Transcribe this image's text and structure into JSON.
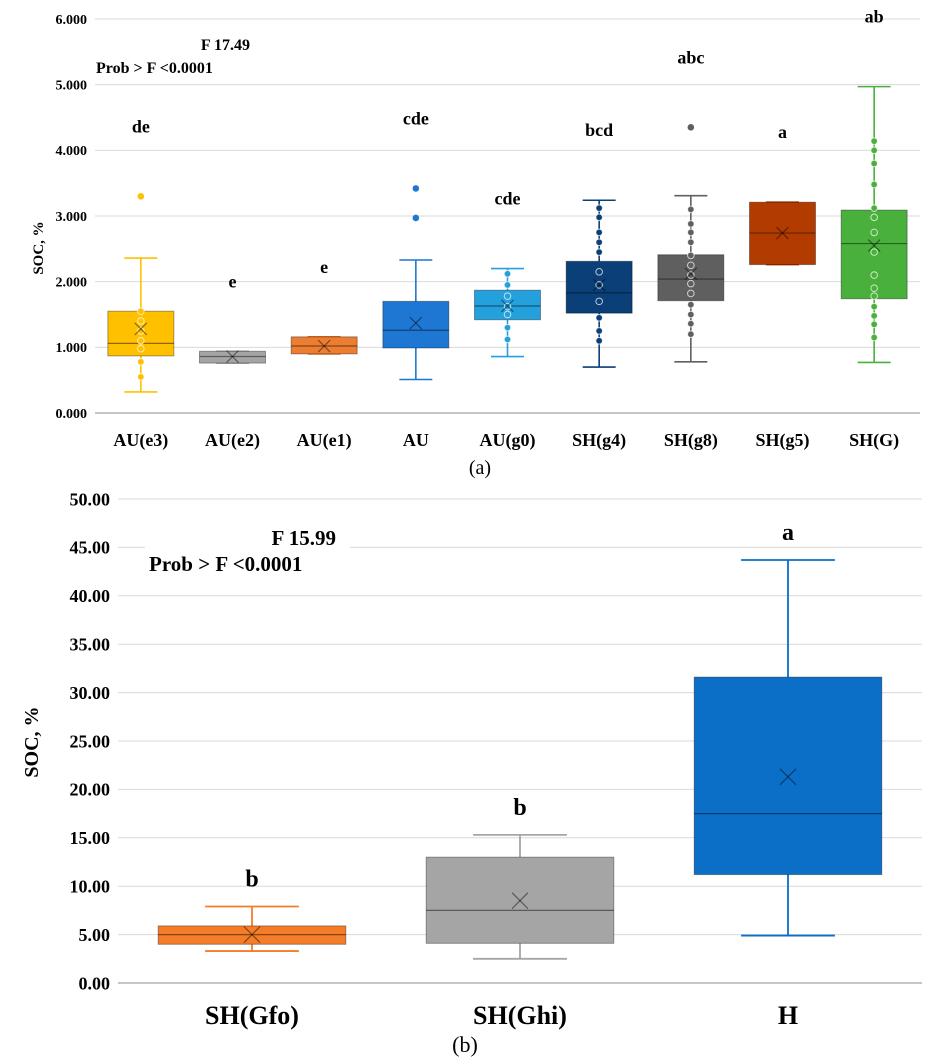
{
  "chart_data": [
    {
      "type": "box",
      "panel_label": "(a)",
      "ylabel": "SOC, %",
      "ylim": [
        0,
        6
      ],
      "yticks": [
        "0.000",
        "1.000",
        "2.000",
        "3.000",
        "4.000",
        "5.000",
        "6.000"
      ],
      "stats_text": {
        "f_line": "F   17.49",
        "p_line": "Prob > F <0.0001"
      },
      "categories": [
        "AU(e3)",
        "AU(e2)",
        "AU(e1)",
        "AU",
        "AU(g0)",
        "SH(g4)",
        "SH(g8)",
        "SH(g5)",
        "SH(G)"
      ],
      "boxes": [
        {
          "name": "AU(e3)",
          "color": "#FFC000",
          "min": 0.32,
          "q1": 0.87,
          "median": 1.06,
          "q3": 1.55,
          "max": 2.36,
          "mean": 1.28,
          "group": "de",
          "outliers": [
            3.3
          ],
          "points": [
            0.55,
            0.78,
            0.98,
            1.1,
            1.25,
            1.4,
            1.55
          ]
        },
        {
          "name": "AU(e2)",
          "color": "#A5A5A5",
          "min": 0.76,
          "q1": 0.76,
          "median": 0.86,
          "q3": 0.94,
          "max": 0.94,
          "mean": 0.86,
          "group": "e",
          "outliers": [],
          "points": []
        },
        {
          "name": "AU(e1)",
          "color": "#ED7D31",
          "min": 0.9,
          "q1": 0.9,
          "median": 1.02,
          "q3": 1.16,
          "max": 1.16,
          "mean": 1.02,
          "group": "e",
          "outliers": [],
          "points": []
        },
        {
          "name": "AU",
          "color": "#1F77D4",
          "min": 0.51,
          "q1": 0.99,
          "median": 1.26,
          "q3": 1.7,
          "max": 2.33,
          "mean": 1.37,
          "group": "cde",
          "outliers": [
            2.97,
            3.42
          ],
          "points": []
        },
        {
          "name": "AU(g0)",
          "color": "#24A0DC",
          "min": 0.86,
          "q1": 1.42,
          "median": 1.63,
          "q3": 1.87,
          "max": 2.2,
          "mean": 1.63,
          "group": "cde",
          "outliers": [],
          "points": [
            1.12,
            1.3,
            1.5,
            1.62,
            1.78,
            1.95,
            2.12
          ]
        },
        {
          "name": "SH(g4)",
          "color": "#0A3F78",
          "min": 0.7,
          "q1": 1.52,
          "median": 1.83,
          "q3": 2.31,
          "max": 3.24,
          "mean": 1.95,
          "group": "bcd",
          "outliers": [],
          "points": [
            1.1,
            1.25,
            1.45,
            1.7,
            1.95,
            2.15,
            2.45,
            2.6,
            2.75,
            2.98,
            3.12
          ]
        },
        {
          "name": "SH(g8)",
          "color": "#5F5F5F",
          "min": 0.78,
          "q1": 1.71,
          "median": 2.04,
          "q3": 2.41,
          "max": 3.31,
          "mean": 2.12,
          "group": "abc",
          "outliers": [
            4.35
          ],
          "points": [
            1.2,
            1.36,
            1.5,
            1.65,
            1.82,
            1.97,
            2.1,
            2.25,
            2.4,
            2.6,
            2.75,
            2.88,
            3.1
          ]
        },
        {
          "name": "SH(g5)",
          "color": "#B23C00",
          "min": 2.26,
          "q1": 2.26,
          "median": 2.74,
          "q3": 3.21,
          "max": 3.21,
          "mean": 2.74,
          "group": "a",
          "outliers": [],
          "points": []
        },
        {
          "name": "SH(G)",
          "color": "#4AB03C",
          "min": 0.77,
          "q1": 1.74,
          "median": 2.58,
          "q3": 3.09,
          "max": 4.97,
          "mean": 2.55,
          "group": "ab",
          "outliers": [],
          "points": [
            1.15,
            1.35,
            1.48,
            1.62,
            1.78,
            1.9,
            2.1,
            2.45,
            2.75,
            2.98,
            3.12,
            3.48,
            3.8,
            4.0,
            4.14
          ]
        }
      ]
    },
    {
      "type": "box",
      "panel_label": "(b)",
      "ylabel": "SOC, %",
      "ylim": [
        0,
        50
      ],
      "yticks": [
        "0.00",
        "5.00",
        "10.00",
        "15.00",
        "20.00",
        "25.00",
        "30.00",
        "35.00",
        "40.00",
        "45.00",
        "50.00"
      ],
      "stats_text": {
        "f_line": "F   15.99",
        "p_line": "Prob > F <0.0001"
      },
      "categories": [
        "SH(Gfo)",
        "SH(Ghi)",
        "H"
      ],
      "boxes": [
        {
          "name": "SH(Gfo)",
          "color": "#F57C28",
          "min": 3.3,
          "q1": 4.0,
          "median": 5.0,
          "q3": 5.9,
          "max": 7.9,
          "mean": 5.0,
          "group": "b",
          "outliers": [],
          "points": []
        },
        {
          "name": "SH(Ghi)",
          "color": "#A5A5A5",
          "min": 2.5,
          "q1": 4.1,
          "median": 7.5,
          "q3": 13.0,
          "max": 15.3,
          "mean": 8.5,
          "group": "b",
          "outliers": [],
          "points": []
        },
        {
          "name": "H",
          "color": "#0B6FC8",
          "min": 4.9,
          "q1": 11.2,
          "median": 17.5,
          "q3": 31.6,
          "max": 43.7,
          "mean": 21.3,
          "group": "a",
          "outliers": [],
          "points": []
        }
      ]
    }
  ]
}
